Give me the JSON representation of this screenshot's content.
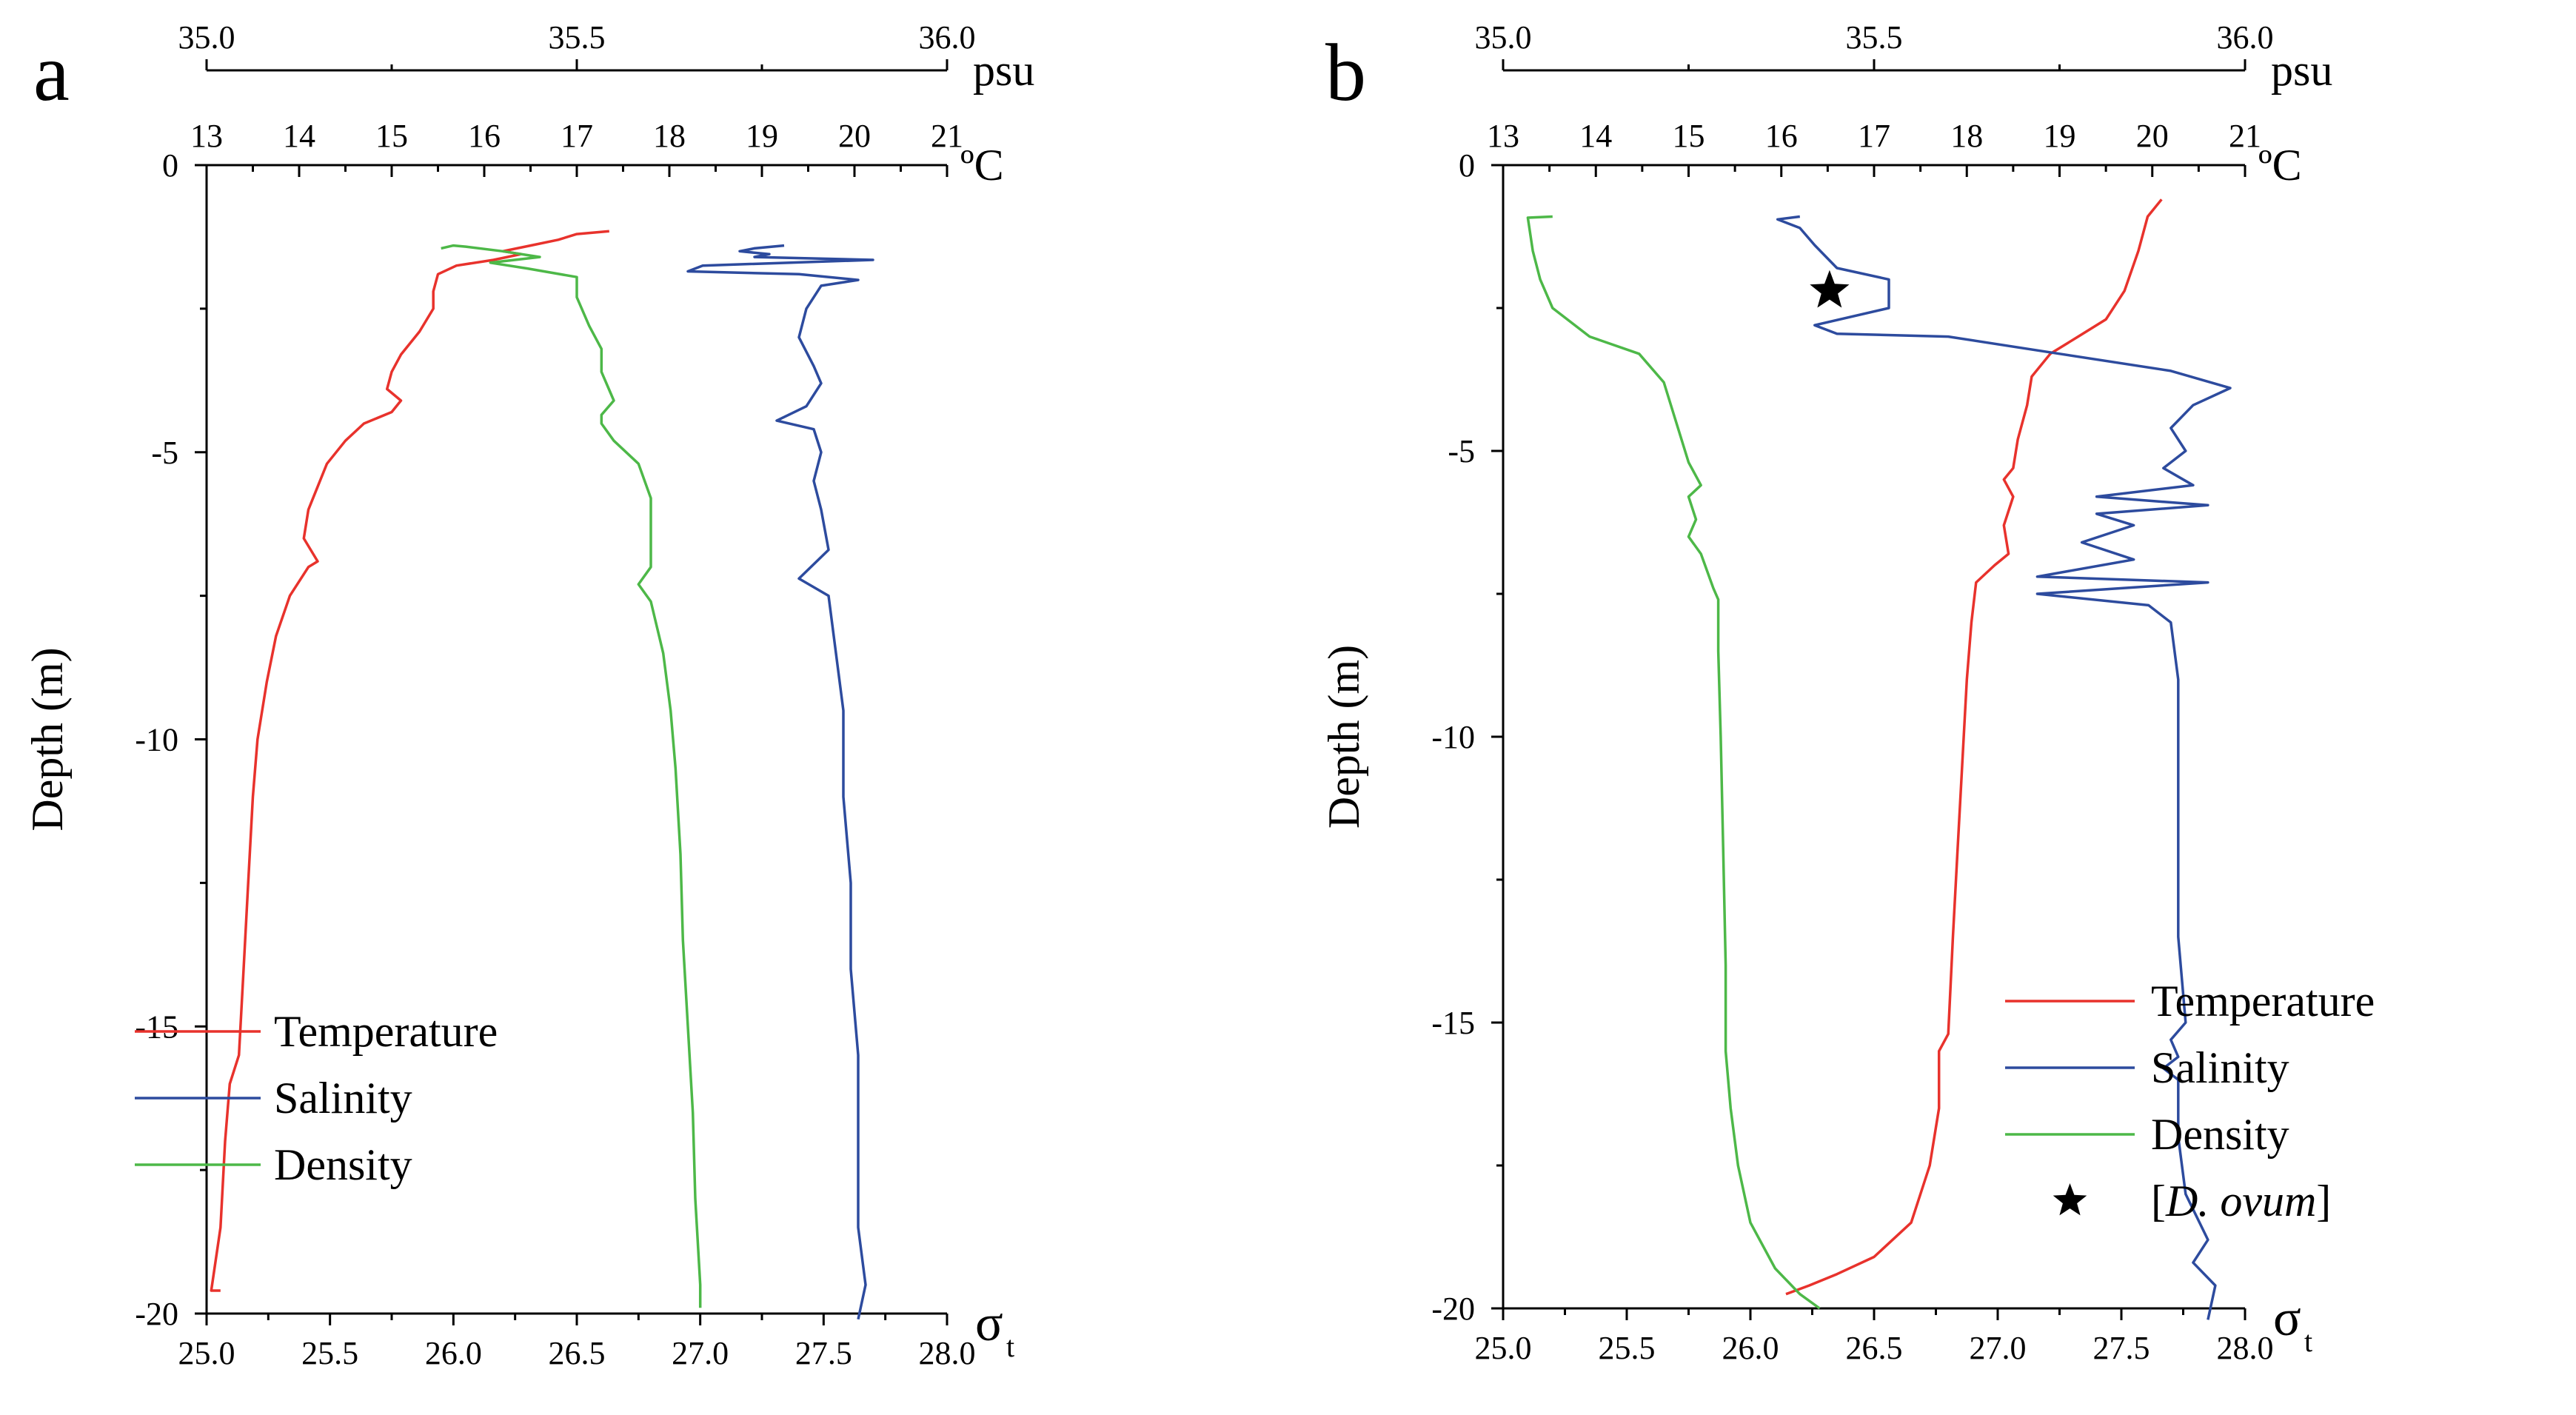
{
  "chart_data": [
    {
      "type": "line",
      "panel_label": "a",
      "ylabel": "Depth (m)",
      "y_axis": {
        "range": [
          -20,
          0
        ],
        "ticks": [
          0,
          -5,
          -10,
          -15,
          -20
        ],
        "tick_labels": [
          "0",
          "-5",
          "-10",
          "-15",
          "-20"
        ]
      },
      "axes": {
        "salinity": {
          "unit": "psu",
          "range": [
            35.0,
            36.0
          ],
          "ticks": [
            35.0,
            35.5,
            36.0
          ],
          "tick_labels": [
            "35.0",
            "35.5",
            "36.0"
          ]
        },
        "temperature": {
          "unit": "ºC",
          "range": [
            13,
            21
          ],
          "ticks": [
            13,
            14,
            15,
            16,
            17,
            18,
            19,
            20,
            21
          ],
          "tick_labels": [
            "13",
            "14",
            "15",
            "16",
            "17",
            "18",
            "19",
            "20",
            "21"
          ]
        },
        "density": {
          "unit": "σ",
          "unit_sub": "t",
          "range": [
            25.0,
            28.0
          ],
          "ticks": [
            25.0,
            25.5,
            26.0,
            26.5,
            27.0,
            27.5,
            28.0
          ],
          "tick_labels": [
            "25.0",
            "25.5",
            "26.0",
            "26.5",
            "27.0",
            "27.5",
            "28.0"
          ]
        }
      },
      "legend": {
        "position": "bottom-left",
        "entries": [
          "Temperature",
          "Salinity",
          "Density"
        ]
      },
      "series": [
        {
          "name": "Temperature",
          "axis": "temperature",
          "color": "#e8322c",
          "points": [
            [
              17.35,
              -1.15
            ],
            [
              17.0,
              -1.2
            ],
            [
              16.8,
              -1.3
            ],
            [
              16.5,
              -1.4
            ],
            [
              16.2,
              -1.5
            ],
            [
              16.4,
              -1.55
            ],
            [
              16.1,
              -1.65
            ],
            [
              15.7,
              -1.75
            ],
            [
              15.5,
              -1.9
            ],
            [
              15.45,
              -2.2
            ],
            [
              15.45,
              -2.5
            ],
            [
              15.3,
              -2.9
            ],
            [
              15.1,
              -3.3
            ],
            [
              15.0,
              -3.6
            ],
            [
              14.95,
              -3.9
            ],
            [
              15.1,
              -4.1
            ],
            [
              15.0,
              -4.3
            ],
            [
              14.7,
              -4.5
            ],
            [
              14.5,
              -4.8
            ],
            [
              14.3,
              -5.2
            ],
            [
              14.2,
              -5.6
            ],
            [
              14.1,
              -6.0
            ],
            [
              14.05,
              -6.5
            ],
            [
              14.2,
              -6.9
            ],
            [
              14.1,
              -7.0
            ],
            [
              13.9,
              -7.5
            ],
            [
              13.75,
              -8.2
            ],
            [
              13.65,
              -9.0
            ],
            [
              13.55,
              -10.0
            ],
            [
              13.5,
              -11.0
            ],
            [
              13.45,
              -12.5
            ],
            [
              13.4,
              -14.0
            ],
            [
              13.35,
              -15.5
            ],
            [
              13.25,
              -16.0
            ],
            [
              13.2,
              -17.0
            ],
            [
              13.15,
              -18.5
            ],
            [
              13.05,
              -19.6
            ],
            [
              13.15,
              -19.6
            ]
          ]
        },
        {
          "name": "Salinity",
          "axis": "salinity",
          "color": "#2d4b9e",
          "points": [
            [
              35.78,
              -1.4
            ],
            [
              35.74,
              -1.45
            ],
            [
              35.72,
              -1.5
            ],
            [
              35.76,
              -1.55
            ],
            [
              35.74,
              -1.6
            ],
            [
              35.9,
              -1.65
            ],
            [
              35.67,
              -1.75
            ],
            [
              35.65,
              -1.85
            ],
            [
              35.8,
              -1.9
            ],
            [
              35.88,
              -2.0
            ],
            [
              35.83,
              -2.1
            ],
            [
              35.81,
              -2.5
            ],
            [
              35.8,
              -3.0
            ],
            [
              35.82,
              -3.5
            ],
            [
              35.83,
              -3.8
            ],
            [
              35.81,
              -4.2
            ],
            [
              35.77,
              -4.45
            ],
            [
              35.82,
              -4.6
            ],
            [
              35.83,
              -5.0
            ],
            [
              35.82,
              -5.5
            ],
            [
              35.83,
              -6.0
            ],
            [
              35.84,
              -6.7
            ],
            [
              35.8,
              -7.2
            ],
            [
              35.84,
              -7.5
            ],
            [
              35.85,
              -8.5
            ],
            [
              35.86,
              -9.5
            ],
            [
              35.86,
              -11.0
            ],
            [
              35.87,
              -12.5
            ],
            [
              35.87,
              -14.0
            ],
            [
              35.88,
              -15.5
            ],
            [
              35.88,
              -17.0
            ],
            [
              35.88,
              -18.5
            ],
            [
              35.89,
              -19.5
            ],
            [
              35.88,
              -20.1
            ]
          ]
        },
        {
          "name": "Density",
          "axis": "density",
          "color": "#4db848",
          "points": [
            [
              25.95,
              -1.45
            ],
            [
              26.0,
              -1.4
            ],
            [
              26.05,
              -1.42
            ],
            [
              26.2,
              -1.5
            ],
            [
              26.35,
              -1.6
            ],
            [
              26.15,
              -1.7
            ],
            [
              26.3,
              -1.8
            ],
            [
              26.5,
              -1.95
            ],
            [
              26.5,
              -2.3
            ],
            [
              26.55,
              -2.8
            ],
            [
              26.6,
              -3.2
            ],
            [
              26.6,
              -3.6
            ],
            [
              26.65,
              -4.1
            ],
            [
              26.6,
              -4.35
            ],
            [
              26.6,
              -4.5
            ],
            [
              26.65,
              -4.8
            ],
            [
              26.75,
              -5.2
            ],
            [
              26.8,
              -5.8
            ],
            [
              26.8,
              -6.5
            ],
            [
              26.8,
              -7.0
            ],
            [
              26.75,
              -7.3
            ],
            [
              26.8,
              -7.6
            ],
            [
              26.85,
              -8.5
            ],
            [
              26.88,
              -9.5
            ],
            [
              26.9,
              -10.5
            ],
            [
              26.92,
              -12.0
            ],
            [
              26.93,
              -13.5
            ],
            [
              26.95,
              -15.0
            ],
            [
              26.97,
              -16.5
            ],
            [
              26.98,
              -18.0
            ],
            [
              27.0,
              -19.5
            ],
            [
              27.0,
              -19.9
            ]
          ]
        }
      ]
    },
    {
      "type": "line",
      "panel_label": "b",
      "ylabel": "Depth (m)",
      "y_axis": {
        "range": [
          -20,
          0
        ],
        "ticks": [
          0,
          -5,
          -10,
          -15,
          -20
        ],
        "tick_labels": [
          "0",
          "-5",
          "-10",
          "-15",
          "-20"
        ]
      },
      "axes": {
        "salinity": {
          "unit": "psu",
          "range": [
            35.0,
            36.0
          ],
          "ticks": [
            35.0,
            35.5,
            36.0
          ],
          "tick_labels": [
            "35.0",
            "35.5",
            "36.0"
          ]
        },
        "temperature": {
          "unit": "ºC",
          "range": [
            13,
            21
          ],
          "ticks": [
            13,
            14,
            15,
            16,
            17,
            18,
            19,
            20,
            21
          ],
          "tick_labels": [
            "13",
            "14",
            "15",
            "16",
            "17",
            "18",
            "19",
            "20",
            "21"
          ]
        },
        "density": {
          "unit": "σ",
          "unit_sub": "t",
          "range": [
            25.0,
            28.0
          ],
          "ticks": [
            25.0,
            25.5,
            26.0,
            26.5,
            27.0,
            27.5,
            28.0
          ],
          "tick_labels": [
            "25.0",
            "25.5",
            "26.0",
            "26.5",
            "27.0",
            "27.5",
            "28.0"
          ]
        }
      },
      "legend": {
        "position": "bottom-right",
        "entries": [
          "Temperature",
          "Salinity",
          "Density",
          "[D. ovum]"
        ]
      },
      "marker": {
        "label": "[D. ovum]",
        "axis": "salinity",
        "x": 35.44,
        "y": -2.2
      },
      "series": [
        {
          "name": "Temperature",
          "axis": "temperature",
          "color": "#e8322c",
          "points": [
            [
              20.1,
              -0.6
            ],
            [
              19.95,
              -0.9
            ],
            [
              19.85,
              -1.5
            ],
            [
              19.7,
              -2.2
            ],
            [
              19.5,
              -2.7
            ],
            [
              19.2,
              -3.0
            ],
            [
              18.9,
              -3.3
            ],
            [
              18.7,
              -3.7
            ],
            [
              18.65,
              -4.2
            ],
            [
              18.55,
              -4.8
            ],
            [
              18.5,
              -5.3
            ],
            [
              18.4,
              -5.5
            ],
            [
              18.5,
              -5.8
            ],
            [
              18.4,
              -6.3
            ],
            [
              18.45,
              -6.8
            ],
            [
              18.3,
              -7.0
            ],
            [
              18.1,
              -7.3
            ],
            [
              18.05,
              -8.0
            ],
            [
              18.0,
              -9.0
            ],
            [
              17.95,
              -10.5
            ],
            [
              17.9,
              -12.0
            ],
            [
              17.85,
              -13.5
            ],
            [
              17.8,
              -15.2
            ],
            [
              17.7,
              -15.5
            ],
            [
              17.7,
              -16.5
            ],
            [
              17.6,
              -17.5
            ],
            [
              17.4,
              -18.5
            ],
            [
              17.0,
              -19.1
            ],
            [
              16.6,
              -19.4
            ],
            [
              16.3,
              -19.6
            ],
            [
              16.05,
              -19.75
            ]
          ]
        },
        {
          "name": "Salinity",
          "axis": "salinity",
          "color": "#2d4b9e",
          "points": [
            [
              35.4,
              -0.9
            ],
            [
              35.37,
              -0.95
            ],
            [
              35.4,
              -1.1
            ],
            [
              35.42,
              -1.4
            ],
            [
              35.45,
              -1.8
            ],
            [
              35.52,
              -2.0
            ],
            [
              35.52,
              -2.5
            ],
            [
              35.42,
              -2.8
            ],
            [
              35.45,
              -2.95
            ],
            [
              35.6,
              -3.0
            ],
            [
              35.75,
              -3.3
            ],
            [
              35.9,
              -3.6
            ],
            [
              35.98,
              -3.9
            ],
            [
              35.93,
              -4.2
            ],
            [
              35.9,
              -4.6
            ],
            [
              35.92,
              -5.0
            ],
            [
              35.89,
              -5.3
            ],
            [
              35.93,
              -5.6
            ],
            [
              35.8,
              -5.8
            ],
            [
              35.95,
              -5.95
            ],
            [
              35.8,
              -6.1
            ],
            [
              35.85,
              -6.3
            ],
            [
              35.78,
              -6.6
            ],
            [
              35.85,
              -6.9
            ],
            [
              35.72,
              -7.2
            ],
            [
              35.95,
              -7.3
            ],
            [
              35.72,
              -7.5
            ],
            [
              35.87,
              -7.7
            ],
            [
              35.9,
              -8.0
            ],
            [
              35.91,
              -9.0
            ],
            [
              35.91,
              -11.0
            ],
            [
              35.91,
              -13.5
            ],
            [
              35.92,
              -15.0
            ],
            [
              35.9,
              -15.3
            ],
            [
              35.91,
              -15.6
            ],
            [
              35.89,
              -15.8
            ],
            [
              35.91,
              -16.0
            ],
            [
              35.91,
              -17.0
            ],
            [
              35.92,
              -18.0
            ],
            [
              35.95,
              -18.8
            ],
            [
              35.93,
              -19.2
            ],
            [
              35.96,
              -19.6
            ],
            [
              35.95,
              -20.2
            ]
          ]
        },
        {
          "name": "Density",
          "axis": "density",
          "color": "#4db848",
          "points": [
            [
              25.2,
              -0.9
            ],
            [
              25.1,
              -0.92
            ],
            [
              25.12,
              -1.5
            ],
            [
              25.15,
              -2.0
            ],
            [
              25.2,
              -2.5
            ],
            [
              25.35,
              -3.0
            ],
            [
              25.55,
              -3.3
            ],
            [
              25.65,
              -3.8
            ],
            [
              25.7,
              -4.5
            ],
            [
              25.75,
              -5.2
            ],
            [
              25.8,
              -5.6
            ],
            [
              25.75,
              -5.8
            ],
            [
              25.78,
              -6.2
            ],
            [
              25.75,
              -6.5
            ],
            [
              25.8,
              -6.8
            ],
            [
              25.85,
              -7.4
            ],
            [
              25.87,
              -7.6
            ],
            [
              25.87,
              -8.5
            ],
            [
              25.88,
              -10.0
            ],
            [
              25.89,
              -12.0
            ],
            [
              25.9,
              -14.0
            ],
            [
              25.9,
              -15.5
            ],
            [
              25.92,
              -16.5
            ],
            [
              25.95,
              -17.5
            ],
            [
              26.0,
              -18.5
            ],
            [
              26.1,
              -19.3
            ],
            [
              26.2,
              -19.75
            ],
            [
              26.28,
              -20.0
            ]
          ]
        }
      ]
    }
  ]
}
